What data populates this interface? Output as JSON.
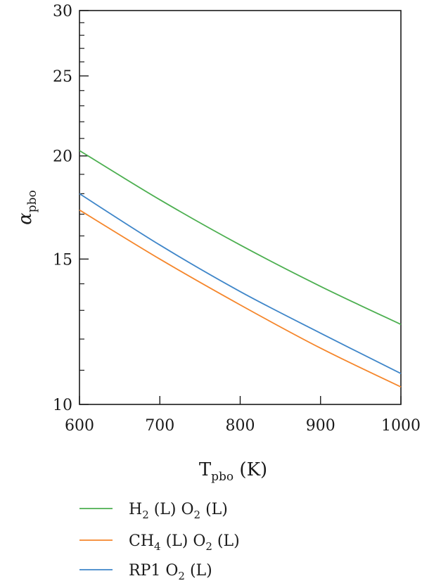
{
  "chart_data": {
    "type": "line",
    "xlabel": {
      "main": "T",
      "sub": "pbo",
      "unit": " (K)"
    },
    "ylabel": {
      "main": "α",
      "sub": "pbo"
    },
    "xlim": [
      600,
      1000
    ],
    "ylim": [
      10,
      30
    ],
    "yscale": "log",
    "grid": false,
    "legend_position": "bottom",
    "x_ticks": [
      600,
      700,
      800,
      900,
      1000
    ],
    "y_ticks": [
      10,
      15,
      20,
      25,
      30
    ],
    "y_minor_ticks": [
      11,
      12,
      13,
      14,
      16,
      17,
      18,
      19,
      21,
      22,
      23,
      24,
      26,
      27,
      28,
      29
    ],
    "series": [
      {
        "key": "h2",
        "label": {
          "a": "H",
          "a_sub": "2",
          "b": " (L) O",
          "b_sub": "2",
          "c": " (L)"
        },
        "color": "#4caf50",
        "x": [
          600,
          700,
          800,
          900,
          1000
        ],
        "y": [
          20.3,
          17.7,
          15.6,
          13.9,
          12.5
        ]
      },
      {
        "key": "ch4",
        "label": {
          "a": "CH",
          "a_sub": "4",
          "b": " (L) O",
          "b_sub": "2",
          "c": " (L)"
        },
        "color": "#f5862b",
        "x": [
          600,
          700,
          800,
          900,
          1000
        ],
        "y": [
          17.2,
          15.0,
          13.2,
          11.7,
          10.5
        ]
      },
      {
        "key": "rp1",
        "label": {
          "a": "RP1 O",
          "a_sub": "2",
          "b": " (L)",
          "b_sub": "",
          "c": ""
        },
        "color": "#3f86c9",
        "x": [
          600,
          700,
          800,
          900,
          1000
        ],
        "y": [
          18.0,
          15.6,
          13.7,
          12.2,
          10.9
        ]
      }
    ]
  }
}
